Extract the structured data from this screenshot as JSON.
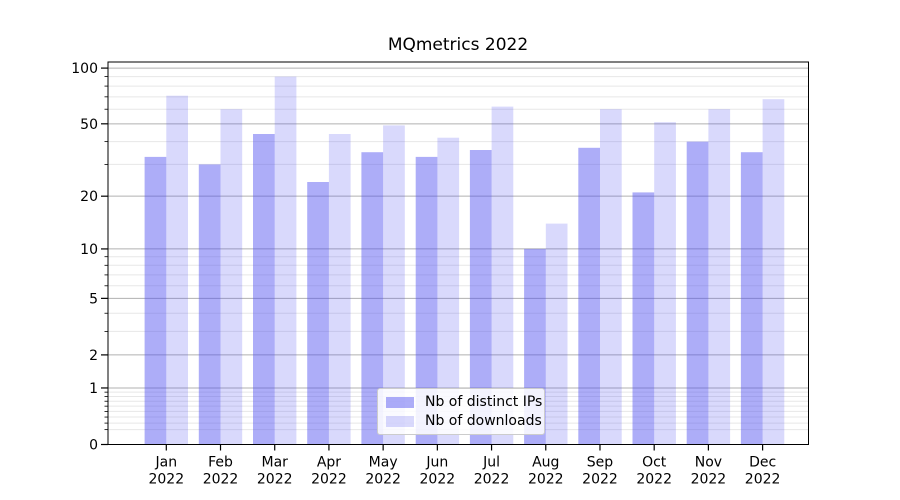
{
  "title": "MQmetrics 2022",
  "chart_data": {
    "type": "bar",
    "title": "MQmetrics 2022",
    "x": [
      "Jan 2022",
      "Feb 2022",
      "Mar 2022",
      "Apr 2022",
      "May 2022",
      "Jun 2022",
      "Jul 2022",
      "Aug 2022",
      "Sep 2022",
      "Oct 2022",
      "Nov 2022",
      "Dec 2022"
    ],
    "months": [
      "Jan",
      "Feb",
      "Mar",
      "Apr",
      "May",
      "Jun",
      "Jul",
      "Aug",
      "Sep",
      "Oct",
      "Nov",
      "Dec"
    ],
    "year": "2022",
    "series": [
      {
        "name": "Nb of distinct IPs",
        "values": [
          33,
          30,
          44,
          24,
          35,
          33,
          36,
          10,
          37,
          21,
          40,
          35
        ]
      },
      {
        "name": "Nb of downloads",
        "values": [
          71,
          60,
          90,
          44,
          49,
          42,
          62,
          14,
          60,
          51,
          60,
          68
        ]
      }
    ],
    "yscale": "log1p",
    "y_major_ticks": [
      0,
      1,
      2,
      5,
      10,
      20,
      50,
      100
    ],
    "y_minor_ticks": [
      0.2,
      0.3,
      0.4,
      0.5,
      0.6,
      0.7,
      0.8,
      0.9,
      3,
      4,
      6,
      7,
      8,
      9,
      30,
      40,
      60,
      70,
      80,
      90
    ],
    "ylim": [
      0,
      108
    ],
    "grid": "horizontal",
    "legend_position": "lower center"
  },
  "legend": {
    "items": [
      "Nb of distinct IPs",
      "Nb of downloads"
    ]
  },
  "colors": {
    "ips_bar": "#5050f0",
    "ips_bar_opacity": "0.47",
    "downloads_bar": "#5050f0",
    "downloads_bar_opacity": "0.22",
    "grid_major": "#b0b0b0",
    "grid_minor": "#e7e7e7",
    "axis": "#000000",
    "text": "#000000",
    "legend_border": "#cccccc",
    "background": "#ffffff"
  }
}
